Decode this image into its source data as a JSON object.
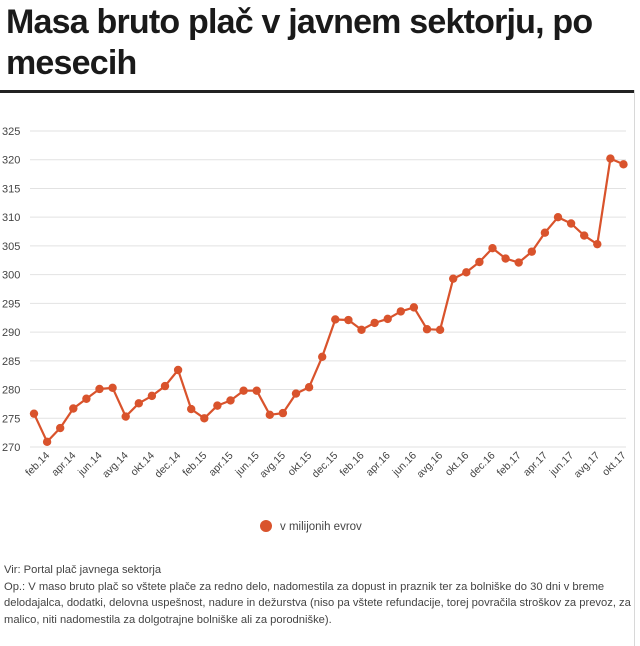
{
  "title": "Masa bruto plač v javnem sektorju, po mesecih",
  "source": "Vir: Portal plač javnega sektorja",
  "note": "Op.: V maso bruto plač so vštete plače za redno delo, nadomestila za dopust in praznik ter za bolniške do 30 dni v breme delodajalca, dodatki, delovna uspešnost, nadure in dežurstva (niso pa vštete refundacije, torej povračila stroškov za prevoz, za malico, niti nadomestila za dolgotrajne bolniške ali za porodniške).",
  "colors": {
    "series": "#d9532c",
    "grid": "#e2e2e2",
    "text": "#444444"
  },
  "chart_data": {
    "type": "line",
    "title": "",
    "xlabel": "",
    "ylabel": "",
    "ylim": [
      270,
      325
    ],
    "yticks": [
      270,
      275,
      280,
      285,
      290,
      295,
      300,
      305,
      310,
      315,
      320,
      325
    ],
    "grid": true,
    "legend_position": "bottom",
    "x": [
      "jan.14",
      "feb.14",
      "mar.14",
      "apr.14",
      "maj.14",
      "jun.14",
      "jul.14",
      "avg.14",
      "sep.14",
      "okt.14",
      "nov.14",
      "dec.14",
      "jan.15",
      "feb.15",
      "mar.15",
      "apr.15",
      "maj.15",
      "jun.15",
      "jul.15",
      "avg.15",
      "sep.15",
      "okt.15",
      "nov.15",
      "dec.15",
      "jan.16",
      "feb.16",
      "mar.16",
      "apr.16",
      "maj.16",
      "jun.16",
      "jul.16",
      "avg.16",
      "sep.16",
      "okt.16",
      "nov.16",
      "dec.16",
      "jan.17",
      "feb.17",
      "mar.17",
      "apr.17",
      "maj.17",
      "jun.17",
      "jul.17",
      "avg.17",
      "sep.17",
      "okt.17"
    ],
    "xtick_labels": [
      "feb.14",
      "apr.14",
      "jun.14",
      "avg.14",
      "okt.14",
      "dec.14",
      "feb.15",
      "apr.15",
      "jun.15",
      "avg.15",
      "okt.15",
      "dec.15",
      "feb.16",
      "apr.16",
      "jun.16",
      "avg.16",
      "okt.16",
      "dec.16",
      "feb.17",
      "apr.17",
      "jun.17",
      "avg.17",
      "okt.17"
    ],
    "series": [
      {
        "name": "v milijonih evrov",
        "values": [
          275.8,
          270.9,
          273.3,
          276.7,
          278.4,
          280.1,
          280.3,
          275.3,
          277.6,
          278.9,
          280.6,
          283.4,
          276.6,
          275.0,
          277.2,
          278.1,
          279.8,
          279.8,
          275.6,
          275.9,
          279.3,
          280.4,
          285.7,
          292.2,
          292.1,
          290.4,
          291.6,
          292.3,
          293.6,
          294.3,
          290.5,
          290.4,
          299.3,
          300.4,
          302.2,
          304.6,
          302.8,
          302.1,
          304.0,
          307.3,
          310.0,
          308.9,
          306.8,
          305.3,
          320.2,
          319.2
        ]
      }
    ]
  }
}
